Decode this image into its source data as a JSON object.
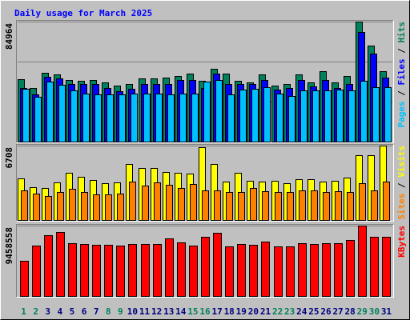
{
  "chart_data": [
    {
      "type": "bar",
      "title": "Daily usage for March 2025",
      "ylim": [
        0,
        84964
      ],
      "yticks": [
        84964
      ],
      "grid": true,
      "legend_separator": " / ",
      "series": [
        {
          "name": "Hits",
          "color": "#00805c",
          "values": [
            44150,
            37900,
            48700,
            47500,
            43600,
            43000,
            43600,
            41900,
            39600,
            40800,
            44700,
            44700,
            45300,
            46400,
            48100,
            43000,
            51500,
            48100,
            43000,
            41900,
            47500,
            39600,
            40800,
            47500,
            41900,
            49800,
            41900,
            46400,
            84964,
            67900,
            49800
          ]
        },
        {
          "name": "Files",
          "color": "#0000ff",
          "values": [
            37900,
            33400,
            45800,
            44700,
            40800,
            40800,
            40800,
            37900,
            35700,
            37400,
            40800,
            40800,
            40800,
            43600,
            43600,
            37900,
            48100,
            40800,
            40800,
            40800,
            43600,
            36800,
            37900,
            43600,
            39100,
            43600,
            37900,
            40800,
            77500,
            62300,
            45300
          ]
        },
        {
          "name": "Pages",
          "color": "#00c0ff",
          "values": [
            37400,
            31700,
            42500,
            40200,
            36200,
            34000,
            33400,
            33400,
            33400,
            34000,
            34000,
            34000,
            33400,
            34000,
            34000,
            42500,
            43600,
            33400,
            36800,
            37400,
            38500,
            34000,
            32300,
            36200,
            36200,
            36200,
            36800,
            36200,
            43000,
            38500,
            38500
          ]
        }
      ]
    },
    {
      "type": "bar",
      "ylim": [
        0,
        6708
      ],
      "yticks": [
        6708
      ],
      "legend_separator": " / ",
      "series": [
        {
          "name": "Visits",
          "color": "#ffff00",
          "values": [
            3750,
            2960,
            2880,
            3390,
            4250,
            3890,
            3610,
            3320,
            3390,
            5050,
            4690,
            4690,
            4330,
            4250,
            4180,
            6560,
            5050,
            3460,
            4250,
            3530,
            3460,
            3530,
            3320,
            3680,
            3680,
            3460,
            3530,
            3820,
            5840,
            5840,
            6708
          ]
        },
        {
          "name": "Sites",
          "color": "#ff8000",
          "values": [
            2670,
            2380,
            2160,
            2520,
            2810,
            2520,
            2310,
            2310,
            2380,
            3460,
            3100,
            3390,
            3170,
            2880,
            3240,
            2670,
            2670,
            2520,
            2520,
            2880,
            2600,
            2520,
            2520,
            2670,
            2670,
            2520,
            2600,
            2520,
            3320,
            2670,
            3460
          ]
        }
      ]
    },
    {
      "type": "bar",
      "ylim": [
        0,
        9458558
      ],
      "yticks": [
        9458558
      ],
      "categories": [
        "1",
        "2",
        "3",
        "4",
        "5",
        "6",
        "7",
        "8",
        "9",
        "10",
        "11",
        "12",
        "13",
        "14",
        "15",
        "16",
        "17",
        "18",
        "19",
        "20",
        "21",
        "22",
        "23",
        "24",
        "25",
        "26",
        "27",
        "28",
        "29",
        "30",
        "31"
      ],
      "category_colors": [
        "#00805c",
        "#00805c",
        "#000080",
        "#000080",
        "#000080",
        "#000080",
        "#000080",
        "#00805c",
        "#00805c",
        "#000080",
        "#000080",
        "#000080",
        "#000080",
        "#000080",
        "#00805c",
        "#00805c",
        "#000080",
        "#000080",
        "#000080",
        "#000080",
        "#000080",
        "#00805c",
        "#00805c",
        "#000080",
        "#000080",
        "#000080",
        "#000080",
        "#000080",
        "#00805c",
        "#00805c",
        "#000080"
      ],
      "series": [
        {
          "name": "KBytes",
          "color": "#ff0000",
          "values": [
            4730000,
            6770000,
            8170000,
            8600000,
            7100000,
            6990000,
            6880000,
            6880000,
            6770000,
            6990000,
            6990000,
            6990000,
            7740000,
            7200000,
            6770000,
            7960000,
            8490000,
            6670000,
            6990000,
            6880000,
            7310000,
            6670000,
            6670000,
            7100000,
            6990000,
            7100000,
            7100000,
            7530000,
            9458558,
            7960000,
            7960000
          ]
        }
      ]
    }
  ]
}
